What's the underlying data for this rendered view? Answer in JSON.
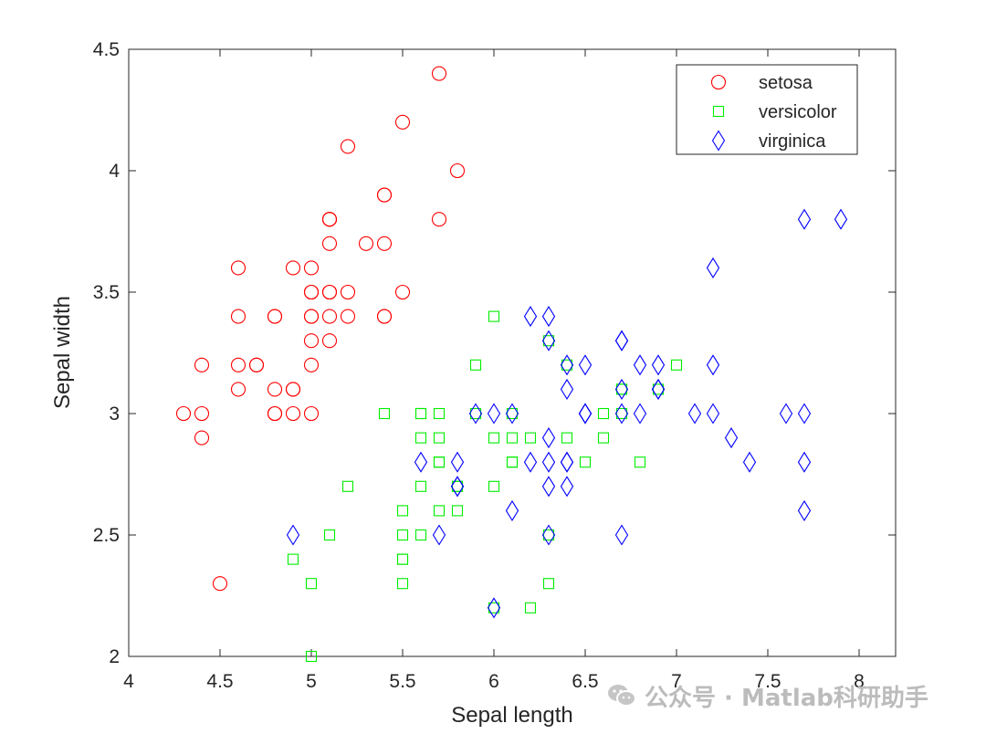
{
  "chart_data": {
    "type": "scatter",
    "title": "",
    "xlabel": "Sepal length",
    "ylabel": "Sepal width",
    "xlim": [
      4,
      8.2
    ],
    "ylim": [
      2,
      4.5
    ],
    "xticks": [
      4,
      4.5,
      5,
      5.5,
      6,
      6.5,
      7,
      7.5,
      8
    ],
    "xtick_labels": [
      "4",
      "4.5",
      "5",
      "5.5",
      "6",
      "6.5",
      "7",
      "7.5",
      "8"
    ],
    "yticks": [
      2,
      2.5,
      3,
      3.5,
      4,
      4.5
    ],
    "ytick_labels": [
      "2",
      "2.5",
      "3",
      "3.5",
      "4",
      "4.5"
    ],
    "grid": false,
    "legend_position": "top-right",
    "series": [
      {
        "name": "setosa",
        "marker": "circle",
        "color": "#ff0000",
        "points": [
          [
            5.1,
            3.5
          ],
          [
            4.9,
            3.0
          ],
          [
            4.7,
            3.2
          ],
          [
            4.6,
            3.1
          ],
          [
            5.0,
            3.6
          ],
          [
            5.4,
            3.9
          ],
          [
            4.6,
            3.4
          ],
          [
            5.0,
            3.4
          ],
          [
            4.4,
            2.9
          ],
          [
            4.9,
            3.1
          ],
          [
            5.4,
            3.7
          ],
          [
            4.8,
            3.4
          ],
          [
            4.8,
            3.0
          ],
          [
            4.3,
            3.0
          ],
          [
            5.8,
            4.0
          ],
          [
            5.7,
            4.4
          ],
          [
            5.4,
            3.9
          ],
          [
            5.1,
            3.5
          ],
          [
            5.7,
            3.8
          ],
          [
            5.1,
            3.8
          ],
          [
            5.4,
            3.4
          ],
          [
            5.1,
            3.7
          ],
          [
            4.6,
            3.6
          ],
          [
            5.1,
            3.3
          ],
          [
            4.8,
            3.4
          ],
          [
            5.0,
            3.0
          ],
          [
            5.0,
            3.4
          ],
          [
            5.2,
            3.5
          ],
          [
            5.2,
            3.4
          ],
          [
            4.7,
            3.2
          ],
          [
            4.8,
            3.1
          ],
          [
            5.4,
            3.4
          ],
          [
            5.2,
            4.1
          ],
          [
            5.5,
            4.2
          ],
          [
            4.9,
            3.1
          ],
          [
            5.0,
            3.2
          ],
          [
            5.5,
            3.5
          ],
          [
            4.9,
            3.6
          ],
          [
            4.4,
            3.0
          ],
          [
            5.1,
            3.4
          ],
          [
            5.0,
            3.5
          ],
          [
            4.5,
            2.3
          ],
          [
            4.4,
            3.2
          ],
          [
            5.0,
            3.5
          ],
          [
            5.1,
            3.8
          ],
          [
            4.8,
            3.0
          ],
          [
            5.1,
            3.8
          ],
          [
            4.6,
            3.2
          ],
          [
            5.3,
            3.7
          ],
          [
            5.0,
            3.3
          ]
        ]
      },
      {
        "name": "versicolor",
        "marker": "square",
        "color": "#00ee00",
        "points": [
          [
            7.0,
            3.2
          ],
          [
            6.4,
            3.2
          ],
          [
            6.9,
            3.1
          ],
          [
            5.5,
            2.3
          ],
          [
            6.5,
            2.8
          ],
          [
            5.7,
            2.8
          ],
          [
            6.3,
            3.3
          ],
          [
            4.9,
            2.4
          ],
          [
            6.6,
            2.9
          ],
          [
            5.2,
            2.7
          ],
          [
            5.0,
            2.0
          ],
          [
            5.9,
            3.0
          ],
          [
            6.0,
            2.2
          ],
          [
            6.1,
            2.9
          ],
          [
            5.6,
            2.9
          ],
          [
            6.7,
            3.1
          ],
          [
            5.6,
            3.0
          ],
          [
            5.8,
            2.7
          ],
          [
            6.2,
            2.2
          ],
          [
            5.6,
            2.5
          ],
          [
            5.9,
            3.2
          ],
          [
            6.1,
            2.8
          ],
          [
            6.3,
            2.5
          ],
          [
            6.1,
            2.8
          ],
          [
            6.4,
            2.9
          ],
          [
            6.6,
            3.0
          ],
          [
            6.8,
            2.8
          ],
          [
            6.7,
            3.0
          ],
          [
            6.0,
            2.9
          ],
          [
            5.7,
            2.6
          ],
          [
            5.5,
            2.4
          ],
          [
            5.5,
            2.4
          ],
          [
            5.8,
            2.7
          ],
          [
            6.0,
            2.7
          ],
          [
            5.4,
            3.0
          ],
          [
            6.0,
            3.4
          ],
          [
            6.7,
            3.1
          ],
          [
            6.3,
            2.3
          ],
          [
            5.6,
            3.0
          ],
          [
            5.5,
            2.5
          ],
          [
            5.5,
            2.6
          ],
          [
            6.1,
            3.0
          ],
          [
            5.8,
            2.6
          ],
          [
            5.0,
            2.3
          ],
          [
            5.6,
            2.7
          ],
          [
            5.7,
            3.0
          ],
          [
            5.7,
            2.9
          ],
          [
            6.2,
            2.9
          ],
          [
            5.1,
            2.5
          ],
          [
            5.7,
            2.8
          ]
        ]
      },
      {
        "name": "virginica",
        "marker": "diamond",
        "color": "#0000ff",
        "points": [
          [
            6.3,
            3.3
          ],
          [
            5.8,
            2.7
          ],
          [
            7.1,
            3.0
          ],
          [
            6.3,
            2.9
          ],
          [
            6.5,
            3.0
          ],
          [
            7.6,
            3.0
          ],
          [
            4.9,
            2.5
          ],
          [
            7.3,
            2.9
          ],
          [
            6.7,
            2.5
          ],
          [
            7.2,
            3.6
          ],
          [
            6.5,
            3.2
          ],
          [
            6.4,
            2.7
          ],
          [
            6.8,
            3.0
          ],
          [
            5.7,
            2.5
          ],
          [
            5.8,
            2.8
          ],
          [
            6.4,
            3.2
          ],
          [
            6.5,
            3.0
          ],
          [
            7.7,
            3.8
          ],
          [
            7.7,
            2.6
          ],
          [
            6.0,
            2.2
          ],
          [
            6.9,
            3.2
          ],
          [
            5.6,
            2.8
          ],
          [
            7.7,
            2.8
          ],
          [
            6.3,
            2.7
          ],
          [
            6.7,
            3.3
          ],
          [
            7.2,
            3.2
          ],
          [
            6.2,
            2.8
          ],
          [
            6.1,
            3.0
          ],
          [
            6.4,
            2.8
          ],
          [
            7.2,
            3.0
          ],
          [
            7.4,
            2.8
          ],
          [
            7.9,
            3.8
          ],
          [
            6.4,
            2.8
          ],
          [
            6.3,
            2.8
          ],
          [
            6.1,
            2.6
          ],
          [
            7.7,
            3.0
          ],
          [
            6.3,
            3.4
          ],
          [
            6.4,
            3.1
          ],
          [
            6.0,
            3.0
          ],
          [
            6.9,
            3.1
          ],
          [
            6.7,
            3.1
          ],
          [
            6.9,
            3.1
          ],
          [
            5.8,
            2.7
          ],
          [
            6.8,
            3.2
          ],
          [
            6.7,
            3.3
          ],
          [
            6.7,
            3.0
          ],
          [
            6.3,
            2.5
          ],
          [
            6.5,
            3.0
          ],
          [
            6.2,
            3.4
          ],
          [
            5.9,
            3.0
          ]
        ]
      }
    ]
  },
  "watermark": {
    "text": "公众号 · Matlab科研助手",
    "icon": "wechat-icon"
  }
}
